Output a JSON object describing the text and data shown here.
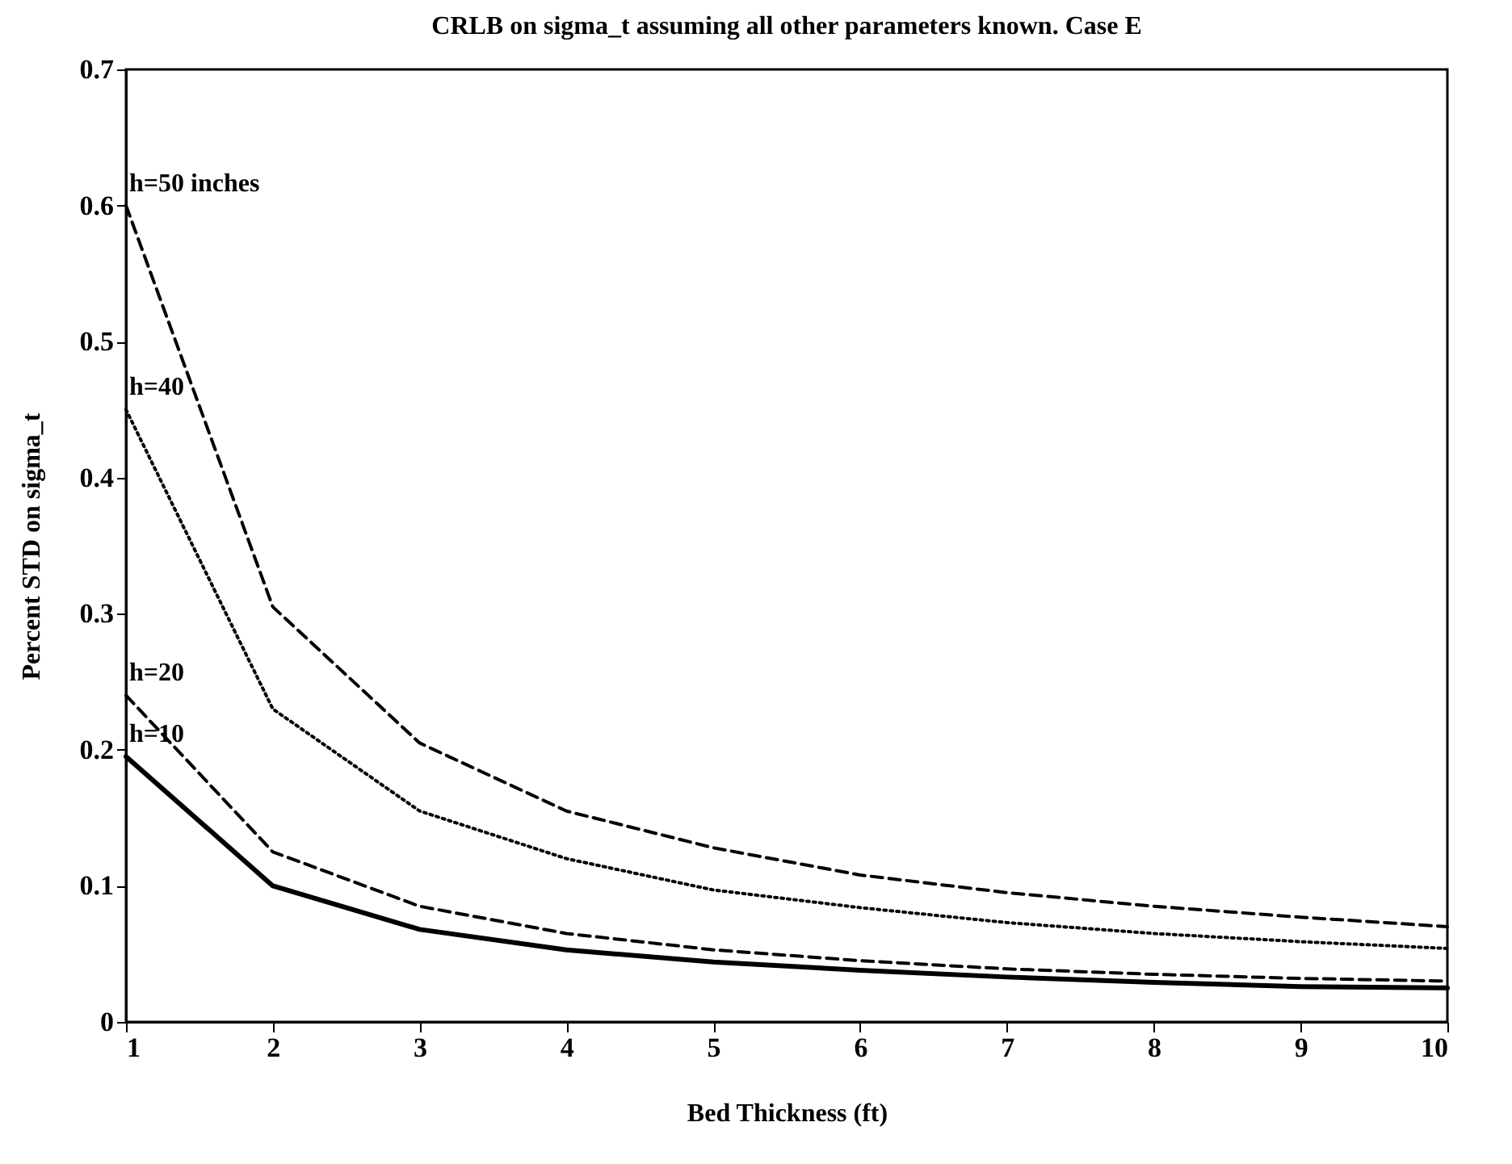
{
  "chart_data": {
    "type": "line",
    "title": "CRLB on sigma_t assuming all other parameters known. Case E",
    "xlabel": "Bed Thickness (ft)",
    "ylabel": "Percent STD on sigma_t",
    "x": [
      1,
      2,
      3,
      4,
      5,
      6,
      7,
      8,
      9,
      10
    ],
    "xlim": [
      1,
      10
    ],
    "xticks": [
      1,
      2,
      3,
      4,
      5,
      6,
      7,
      8,
      9,
      10
    ],
    "ylim": [
      0,
      0.7
    ],
    "yticks": [
      0,
      0.1,
      0.2,
      0.3,
      0.4,
      0.5,
      0.6,
      0.7
    ],
    "grid": false,
    "legend": false,
    "series": [
      {
        "name": "h=50 inches",
        "color": "#000000",
        "line_style": "dashed",
        "values": [
          0.6,
          0.305,
          0.205,
          0.155,
          0.128,
          0.108,
          0.095,
          0.085,
          0.077,
          0.07
        ]
      },
      {
        "name": "h=40",
        "color": "#000000",
        "line_style": "dotted",
        "values": [
          0.45,
          0.23,
          0.155,
          0.12,
          0.097,
          0.084,
          0.073,
          0.065,
          0.059,
          0.054
        ]
      },
      {
        "name": "h=20",
        "color": "#000000",
        "line_style": "dashed",
        "values": [
          0.24,
          0.125,
          0.085,
          0.065,
          0.053,
          0.045,
          0.039,
          0.035,
          0.032,
          0.03
        ]
      },
      {
        "name": "h=10",
        "color": "#000000",
        "line_style": "solid",
        "values": [
          0.195,
          0.1,
          0.068,
          0.053,
          0.044,
          0.038,
          0.033,
          0.029,
          0.026,
          0.025
        ]
      }
    ]
  }
}
